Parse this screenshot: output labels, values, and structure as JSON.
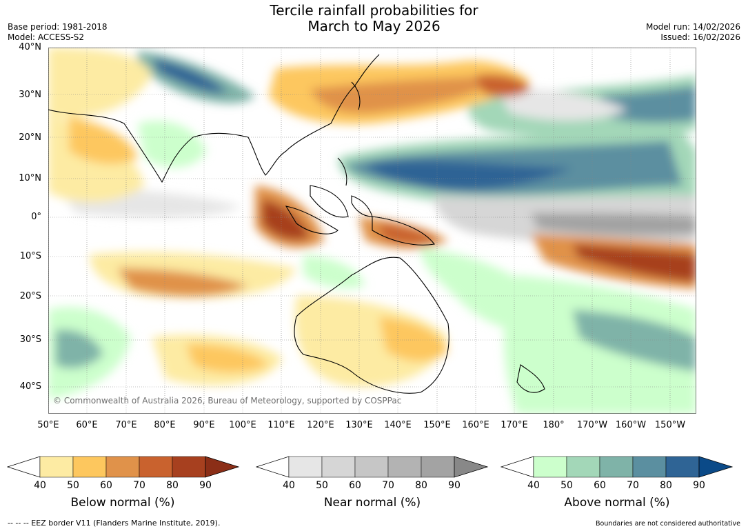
{
  "title_line1": "Tercile rainfall probabilities for",
  "title_line2": "March to May 2026",
  "base_period": "Base period: 1981-2018",
  "model": "Model: ACCESS-S2",
  "model_run": "Model run: 14/02/2026",
  "issued": "Issued: 16/02/2026",
  "copyright": "© Commonwealth of Australia 2026, Bureau of Meteorology, supported by COSPPac",
  "lat_labels": [
    "40°N",
    "30°N",
    "20°N",
    "10°N",
    "0°",
    "10°S",
    "20°S",
    "30°S",
    "40°S"
  ],
  "lon_labels": [
    "50°E",
    "60°E",
    "70°E",
    "80°E",
    "90°E",
    "100°E",
    "110°E",
    "120°E",
    "130°E",
    "140°E",
    "150°E",
    "160°E",
    "170°E",
    "180°",
    "170°W",
    "160°W",
    "150°W"
  ],
  "colorbars": [
    {
      "name": "below",
      "title": "Below normal (%)",
      "ticks": [
        "40",
        "50",
        "60",
        "70",
        "80",
        "90"
      ],
      "colors": [
        "#ffffff",
        "#fdeba3",
        "#fdc75e",
        "#e0924a",
        "#c9622e",
        "#a7401f",
        "#8b2e17"
      ]
    },
    {
      "name": "near",
      "title": "Near normal (%)",
      "ticks": [
        "40",
        "50",
        "60",
        "70",
        "80",
        "90"
      ],
      "colors": [
        "#ffffff",
        "#e6e6e6",
        "#d6d6d6",
        "#c6c6c6",
        "#b3b3b3",
        "#a3a3a3",
        "#888888"
      ]
    },
    {
      "name": "above",
      "title": "Above normal (%)",
      "ticks": [
        "40",
        "50",
        "60",
        "70",
        "80",
        "90"
      ],
      "colors": [
        "#ffffff",
        "#ccffcc",
        "#a3d7b8",
        "#7fb3a8",
        "#5b8fa0",
        "#2f6495",
        "#0b4a88"
      ]
    }
  ],
  "footnote_left": "--  --  -- EEZ border V11 (Flanders Marine Institute, 2019).",
  "footnote_right": "Boundaries are not considered authoritative"
}
